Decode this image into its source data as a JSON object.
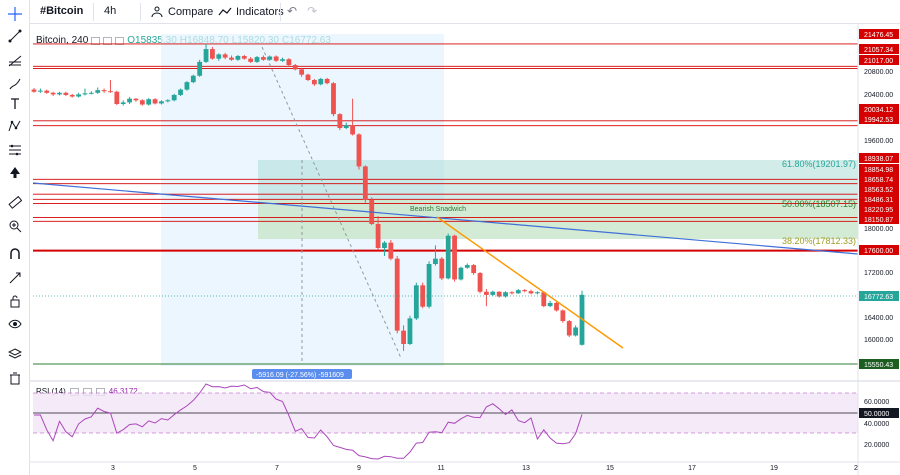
{
  "toolbar": {
    "symbol": "#Bitcoin",
    "timeframe": "4h",
    "compare_label": "Compare",
    "indicators_label": "Indicators"
  },
  "legend": {
    "title": "Bitcoin, 240",
    "open": "O15835.30",
    "high": "H16848.70",
    "low": "L15820.30",
    "close": "C16772.63"
  },
  "rsi": {
    "label": "RSI (14)",
    "value": "46.3172",
    "axis_labels": [
      "60.0000",
      "40.0000",
      "20.0000"
    ],
    "current_label": "50.0000"
  },
  "price_axis": {
    "labels": [
      "21476.45",
      "21057.34",
      "21017.00",
      "20800.00",
      "20400.00",
      "20034.12",
      "19942.53",
      "19600.00",
      "18938.07",
      "18854.98",
      "18658.74",
      "18563.52",
      "18486.31",
      "18220.95",
      "18150.87",
      "18000.00",
      "17600.00",
      "17200.00",
      "16800.00",
      "16772.63",
      "16400.00",
      "16000.00",
      "15550.43"
    ]
  },
  "time_axis": {
    "labels": [
      "3",
      "5",
      "7",
      "9",
      "11",
      "13",
      "15",
      "17",
      "19",
      "2"
    ]
  },
  "annotations": {
    "fib_618": "61.80%(19201.97)",
    "fib_50": "50.00%(18507.15)",
    "fib_382": "38.20%(17812.33)",
    "pattern": "Bearish Snadwich",
    "measure": "-5916.09 (-27.56%) -591609"
  },
  "colors": {
    "up": "#26a69a",
    "down": "#ef5350",
    "level": "#d50000",
    "rsi": "#ab47bc",
    "fib": "#b2dfdb",
    "trend_blue": "#3f6fd8",
    "trend_orange": "#ff9800"
  },
  "chart_data": {
    "type": "candlestick",
    "ylim": [
      15400,
      21700
    ],
    "candles": [
      [
        20620,
        20580,
        20650,
        20560
      ],
      [
        20590,
        20600,
        20640,
        20560
      ],
      [
        20600,
        20560,
        20620,
        20540
      ],
      [
        20560,
        20530,
        20580,
        20500
      ],
      [
        20530,
        20560,
        20580,
        20510
      ],
      [
        20560,
        20520,
        20580,
        20500
      ],
      [
        20520,
        20490,
        20540,
        20470
      ],
      [
        20490,
        20530,
        20560,
        20470
      ],
      [
        20530,
        20550,
        20640,
        20510
      ],
      [
        20550,
        20560,
        20590,
        20530
      ],
      [
        20560,
        20610,
        20660,
        20540
      ],
      [
        20610,
        20590,
        20640,
        20560
      ],
      [
        20590,
        20580,
        20800,
        20560
      ],
      [
        20580,
        20350,
        20600,
        20330
      ],
      [
        20350,
        20380,
        20420,
        20320
      ],
      [
        20380,
        20450,
        20480,
        20350
      ],
      [
        20450,
        20420,
        20460,
        20390
      ],
      [
        20420,
        20340,
        20440,
        20320
      ],
      [
        20340,
        20440,
        20460,
        20320
      ],
      [
        20440,
        20360,
        20460,
        20340
      ],
      [
        20360,
        20400,
        20420,
        20340
      ],
      [
        20400,
        20420,
        20440,
        20380
      ],
      [
        20420,
        20520,
        20540,
        20400
      ],
      [
        20520,
        20620,
        20640,
        20500
      ],
      [
        20620,
        20760,
        20780,
        20600
      ],
      [
        20760,
        20880,
        20900,
        20740
      ],
      [
        20880,
        21140,
        21180,
        20860
      ],
      [
        21140,
        21380,
        21480,
        21120
      ],
      [
        21380,
        21200,
        21420,
        21180
      ],
      [
        21200,
        21280,
        21300,
        21160
      ],
      [
        21280,
        21220,
        21310,
        21190
      ],
      [
        21220,
        21180,
        21260,
        21160
      ],
      [
        21180,
        21250,
        21270,
        21160
      ],
      [
        21250,
        21200,
        21270,
        21180
      ],
      [
        21200,
        21140,
        21230,
        21120
      ],
      [
        21140,
        21230,
        21250,
        21120
      ],
      [
        21230,
        21180,
        21260,
        21160
      ],
      [
        21180,
        21240,
        21260,
        21160
      ],
      [
        21240,
        21160,
        21260,
        21140
      ],
      [
        21160,
        21190,
        21220,
        21140
      ],
      [
        21190,
        21080,
        21210,
        21060
      ],
      [
        21080,
        21000,
        21100,
        20980
      ],
      [
        21000,
        20900,
        21020,
        20860
      ],
      [
        20900,
        20800,
        20920,
        20780
      ],
      [
        20800,
        20720,
        20820,
        20690
      ],
      [
        20720,
        20820,
        20840,
        20700
      ],
      [
        20820,
        20740,
        20840,
        20720
      ],
      [
        20740,
        20160,
        20760,
        20120
      ],
      [
        20160,
        19900,
        20180,
        19860
      ],
      [
        19900,
        19950,
        20000,
        19880
      ],
      [
        19950,
        19780,
        20450,
        19760
      ],
      [
        19780,
        19180,
        19800,
        19120
      ],
      [
        19180,
        18560,
        19200,
        18500
      ],
      [
        18560,
        18100,
        18600,
        18080
      ],
      [
        18100,
        17650,
        18250,
        17620
      ],
      [
        17650,
        17750,
        17780,
        17500
      ],
      [
        17750,
        17450,
        17800,
        17420
      ],
      [
        17450,
        16100,
        17500,
        16050
      ],
      [
        16100,
        15850,
        16200,
        15720
      ],
      [
        15850,
        16330,
        16380,
        15830
      ],
      [
        16330,
        16950,
        17000,
        16300
      ],
      [
        16950,
        16550,
        17000,
        16520
      ],
      [
        16550,
        17350,
        17400,
        16520
      ],
      [
        17350,
        17450,
        17700,
        17320
      ],
      [
        17450,
        17080,
        17480,
        17050
      ],
      [
        17080,
        17880,
        17920,
        17060
      ],
      [
        17880,
        17060,
        17900,
        17020
      ],
      [
        17060,
        17280,
        17300,
        17040
      ],
      [
        17280,
        17330,
        17360,
        17260
      ],
      [
        17330,
        17180,
        17350,
        17150
      ],
      [
        17180,
        16830,
        17200,
        16800
      ],
      [
        16830,
        16770,
        16880,
        16560
      ],
      [
        16770,
        16830,
        16850,
        16750
      ],
      [
        16830,
        16740,
        16840,
        16720
      ],
      [
        16740,
        16820,
        16840,
        16720
      ],
      [
        16820,
        16800,
        16840,
        16780
      ],
      [
        16800,
        16860,
        16880,
        16790
      ],
      [
        16860,
        16840,
        16880,
        16820
      ],
      [
        16840,
        16800,
        16870,
        16780
      ],
      [
        16800,
        16820,
        16840,
        16780
      ],
      [
        16820,
        16560,
        16840,
        16540
      ],
      [
        16560,
        16620,
        16660,
        16540
      ],
      [
        16620,
        16480,
        16640,
        16460
      ],
      [
        16480,
        16280,
        16500,
        16250
      ],
      [
        16280,
        16010,
        16300,
        15980
      ],
      [
        16010,
        16160,
        16200,
        15990
      ],
      [
        15835,
        16772,
        16848,
        15820
      ]
    ]
  }
}
